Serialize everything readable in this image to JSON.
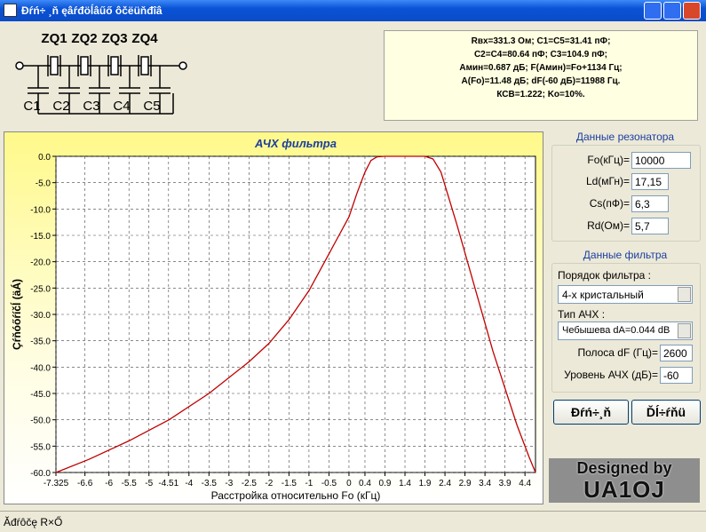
{
  "window": {
    "title": "Đŕń÷ ¸ň ęâŕđöĺâűő ôčëüňđîâ"
  },
  "schematic": {
    "crystals": [
      "ZQ1",
      "ZQ2",
      "ZQ3",
      "ZQ4"
    ],
    "capacitors": [
      "C1",
      "C2",
      "C3",
      "C4",
      "C5"
    ]
  },
  "results": [
    "Rвх=331.3 Ом; C1=C5=31.41 пФ;",
    "C2=C4=80.64 пФ; C3=104.9 пФ;",
    "Aмин=0.687 дБ; F(Aмин)=Fo+1134 Гц;",
    "A(Fo)=11.48 дБ; dF(-60 дБ)=11988 Гц.",
    "КСВ=1.222; Ko=10%."
  ],
  "resonator": {
    "title": "Данные резонатора",
    "fields": [
      {
        "label": "Fo(кГц)=",
        "value": "10000"
      },
      {
        "label": "Ld(мГн)=",
        "value": "17,15"
      },
      {
        "label": "Cs(пФ)=",
        "value": "6,3"
      },
      {
        "label": "Rd(Ом)=",
        "value": "5,7"
      }
    ]
  },
  "filter": {
    "title": "Данные фильтра",
    "order_label": "Порядок фильтра :",
    "order_value": "4-х кристальный",
    "type_label": "Тип АЧХ :",
    "type_value": "Чебышева dA=0.044 dB",
    "fields": [
      {
        "label": "Полоса dF (Гц)=",
        "value": "2600"
      },
      {
        "label": "Уровень АЧХ (дБ)=",
        "value": "-60"
      }
    ]
  },
  "buttons": [
    "Đŕń÷¸ň",
    "Ďĺ÷ŕňü"
  ],
  "logo": [
    "Designed by",
    "UA1OJ"
  ],
  "status": "Ăđŕôčę R×Ő",
  "chart_data": {
    "type": "line",
    "title": "АЧХ фильтра",
    "x_label": "Расстройка относительно Fo (кГц)",
    "y_label": "Çŕňóőŕíčĺ (äÁ)",
    "x": [
      -7.325,
      -6.5,
      -5.5,
      -4.5,
      -3.5,
      -2.5,
      -2,
      -1.5,
      -1,
      -0.5,
      -0.25,
      0,
      0.2,
      0.4,
      0.55,
      0.7,
      0.9,
      1.1,
      1.5,
      1.9,
      2.1,
      2.3,
      2.5,
      2.7,
      3.0,
      3.3,
      3.6,
      3.9,
      4.2,
      4.5,
      4.663
    ],
    "series": [
      {
        "name": "АЧХ",
        "color": "#c00000",
        "values": [
          -60,
          -57.5,
          -54,
          -50,
          -45,
          -39,
          -35.5,
          -31,
          -25.5,
          -18.5,
          -15,
          -11.5,
          -7,
          -3,
          -0.8,
          -0.1,
          0,
          0,
          0,
          0,
          -0.5,
          -3,
          -8,
          -13,
          -21,
          -29,
          -37,
          -44,
          -51,
          -57,
          -60
        ]
      }
    ],
    "xlim": [
      -7.325,
      4.663
    ],
    "ylim": [
      -60,
      0
    ],
    "xticks": [
      -7.325,
      -6.6,
      -6,
      -5.5,
      -5,
      -4.51,
      -4,
      -3.5,
      -3,
      -2.5,
      -2,
      -1.5,
      -1,
      -0.5,
      0,
      0.4,
      0.9,
      1.4,
      1.9,
      2.4,
      2.9,
      3.4,
      3.9,
      4.4
    ],
    "yticks": [
      {
        "value": 0,
        "label": "0.0"
      },
      {
        "value": -5,
        "label": "-5.0"
      },
      {
        "value": -10,
        "label": "-10.0"
      },
      {
        "value": -15,
        "label": "-15.0"
      },
      {
        "value": -20,
        "label": "-20.0"
      },
      {
        "value": -25,
        "label": "-25.0"
      },
      {
        "value": -30,
        "label": "-30.0"
      },
      {
        "value": -35,
        "label": "-35.0"
      },
      {
        "value": -40,
        "label": "-40.0"
      },
      {
        "value": -45,
        "label": "-45.0"
      },
      {
        "value": -50,
        "label": "-50.0"
      },
      {
        "value": -55,
        "label": "-55.0"
      },
      {
        "value": -60,
        "label": "-60.0"
      }
    ],
    "grid": true
  }
}
